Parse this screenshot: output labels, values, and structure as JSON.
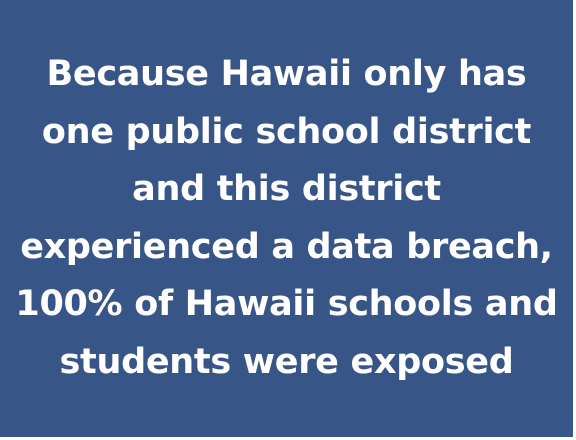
{
  "card": {
    "background": "#385587",
    "text_color": "#ffffff",
    "lines": [
      "Because Hawaii only has",
      "one public school district",
      "and this district",
      "experienced a data breach,",
      "100% of Hawaii schools and",
      "students were exposed"
    ]
  }
}
